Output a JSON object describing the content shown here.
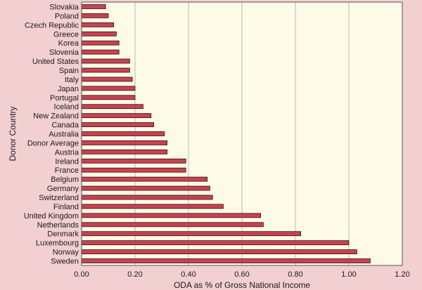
{
  "chart_data": {
    "type": "bar",
    "orientation": "horizontal",
    "xlabel": "ODA as % of Gross National Income",
    "ylabel": "Donor Country",
    "xlim": [
      0,
      1.2
    ],
    "xticks": [
      "0.00",
      "0.20",
      "0.40",
      "0.60",
      "0.80",
      "1.00",
      "1.20"
    ],
    "grid": "vertical",
    "categories": [
      "Slovakia",
      "Poland",
      "Czech Republic",
      "Greece",
      "Korea",
      "Slovenia",
      "United States",
      "Spain",
      "Italy",
      "Japan",
      "Portugal",
      "Iceland",
      "New Zealand",
      "Canada",
      "Australia",
      "Donor Average",
      "Austria",
      "Ireland",
      "France",
      "Belgium",
      "Germany",
      "Switzerland",
      "Finland",
      "United Kingdom",
      "Netherlands",
      "Denmark",
      "Luxembourg",
      "Norway",
      "Sweden"
    ],
    "values": [
      0.09,
      0.1,
      0.12,
      0.13,
      0.14,
      0.14,
      0.18,
      0.18,
      0.19,
      0.2,
      0.2,
      0.23,
      0.26,
      0.27,
      0.31,
      0.32,
      0.32,
      0.39,
      0.39,
      0.47,
      0.48,
      0.49,
      0.53,
      0.67,
      0.68,
      0.82,
      1.0,
      1.03,
      1.08
    ],
    "colors": {
      "background": "#f2cfd0",
      "plot_background": "#fefae8",
      "bar_fill": "#c9424f",
      "bar_stroke": "#2b1214",
      "grid": "#b8b8b8"
    }
  }
}
